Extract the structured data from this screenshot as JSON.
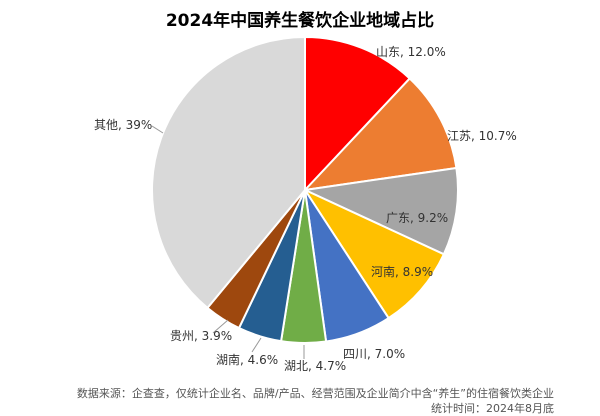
{
  "chart_data": {
    "type": "pie",
    "title": "2024年中国养生餐饮企业地域占比",
    "slices": [
      {
        "label": "山东",
        "value": 12.0,
        "text": "山东, 12.0%",
        "color": "#FF0000"
      },
      {
        "label": "江苏",
        "value": 10.7,
        "text": "江苏, 10.7%",
        "color": "#ED7D31"
      },
      {
        "label": "广东",
        "value": 9.2,
        "text": "广东, 9.2%",
        "color": "#A5A5A5"
      },
      {
        "label": "河南",
        "value": 8.9,
        "text": "河南, 8.9%",
        "color": "#FFC000"
      },
      {
        "label": "四川",
        "value": 7.0,
        "text": "四川, 7.0%",
        "color": "#4472C4"
      },
      {
        "label": "湖北",
        "value": 4.7,
        "text": "湖北, 4.7%",
        "color": "#70AD47"
      },
      {
        "label": "湖南",
        "value": 4.6,
        "text": "湖南, 4.6%",
        "color": "#255E91"
      },
      {
        "label": "贵州",
        "value": 3.9,
        "text": "贵州, 3.9%",
        "color": "#9E480E"
      },
      {
        "label": "其他",
        "value": 39,
        "text": "其他, 39%",
        "color": "#D9D9D9"
      }
    ],
    "legend": "none"
  },
  "footer": {
    "source": "数据来源：企查查，仅统计企业名、品牌/产品、经营范围及企业简介中含“养生”的住宿餐饮类企业",
    "time": "统计时间：2024年8月底"
  }
}
